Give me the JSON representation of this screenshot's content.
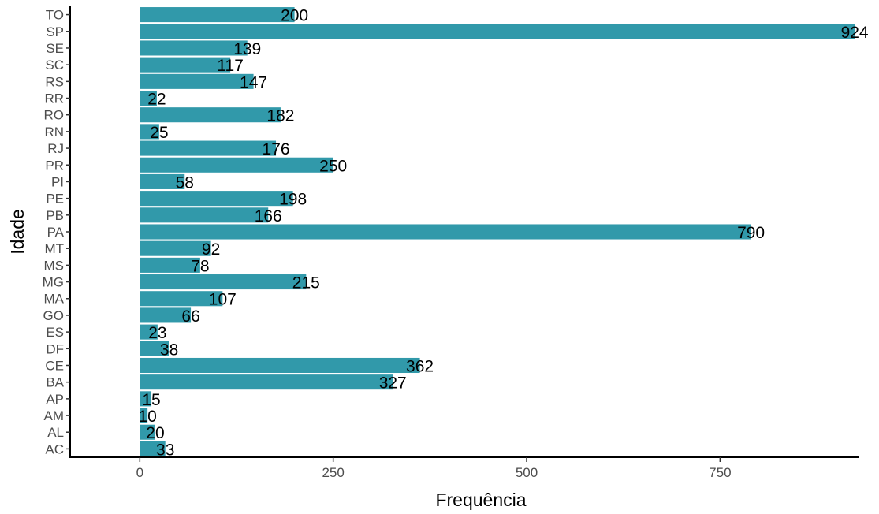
{
  "chart_data": {
    "type": "bar",
    "orientation": "horizontal",
    "xlabel": "Frequência",
    "ylabel": "Idade",
    "title": "",
    "xlim": [
      -90,
      930
    ],
    "xticks": [
      0,
      250,
      500,
      750
    ],
    "grid": false,
    "legend": "none",
    "bar_color": "#3199AA",
    "categories": [
      "AC",
      "AL",
      "AM",
      "AP",
      "BA",
      "CE",
      "DF",
      "ES",
      "GO",
      "MA",
      "MG",
      "MS",
      "MT",
      "PA",
      "PB",
      "PE",
      "PI",
      "PR",
      "RJ",
      "RN",
      "RO",
      "RR",
      "RS",
      "SC",
      "SE",
      "SP",
      "TO"
    ],
    "values": [
      33,
      20,
      10,
      15,
      327,
      362,
      38,
      23,
      66,
      107,
      215,
      78,
      92,
      790,
      166,
      198,
      58,
      250,
      176,
      25,
      182,
      22,
      147,
      117,
      139,
      924,
      200
    ]
  }
}
